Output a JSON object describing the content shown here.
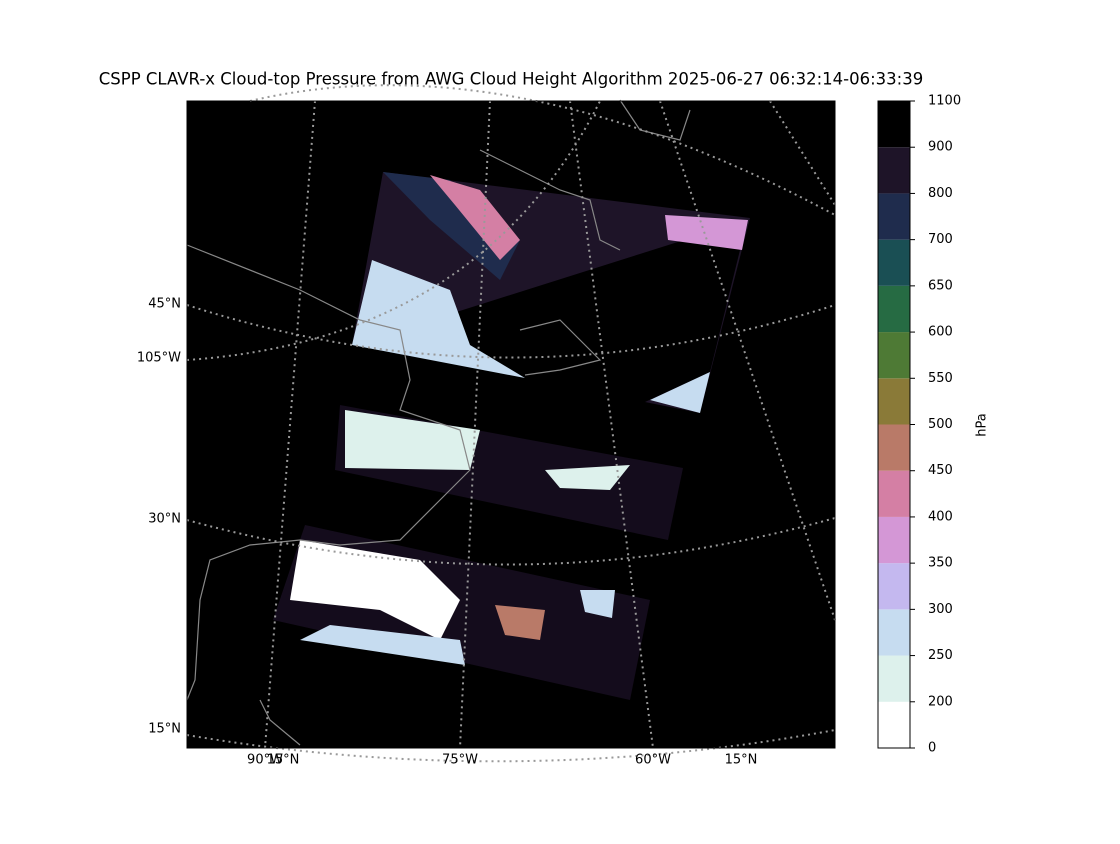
{
  "title": "CSPP CLAVR-x Cloud-top Pressure from AWG Cloud Height Algorithm 2025-06-27 06:32:14-06:33:39",
  "map": {
    "left_labels": [
      "45°N",
      "105°W",
      "30°N",
      "15°N"
    ],
    "bottom_labels": [
      "90°W",
      "15°N",
      "75°W",
      "60°W",
      "15°N"
    ]
  },
  "colorbar": {
    "label": "hPa",
    "ticks": [
      0,
      200,
      250,
      300,
      350,
      400,
      450,
      500,
      550,
      600,
      650,
      700,
      800,
      900,
      1100
    ],
    "colors": [
      "#ffffff",
      "#ddf1ec",
      "#c6dcf0",
      "#c4b8ef",
      "#d497d6",
      "#d47fa4",
      "#b97a68",
      "#8a7a38",
      "#4e7a35",
      "#266b43",
      "#1a4f54",
      "#1f2c4d",
      "#1e1428",
      "#000000"
    ]
  }
}
